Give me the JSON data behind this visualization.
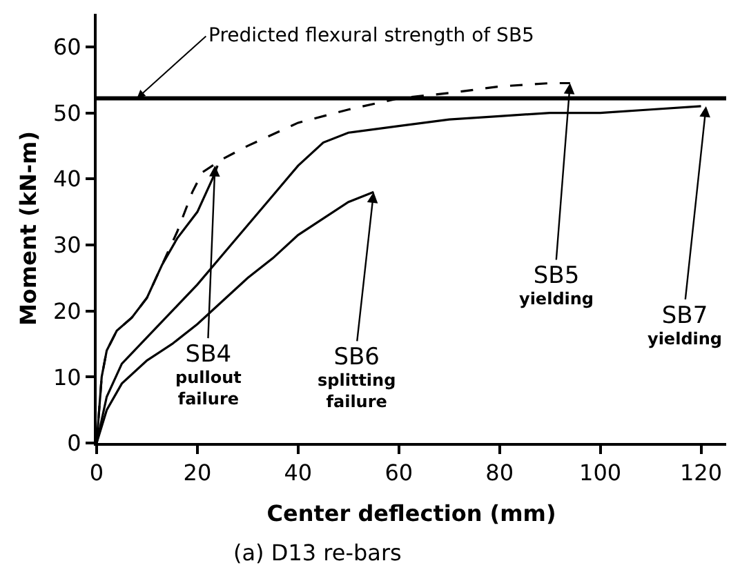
{
  "chart_data": {
    "type": "line",
    "title": "(a) D13 re-bars",
    "xlabel": "Center deflection (mm)",
    "ylabel": "Moment (kN-m)",
    "xlim": [
      0,
      125
    ],
    "ylim": [
      0,
      65
    ],
    "xticks": [
      0,
      20,
      40,
      60,
      80,
      100,
      120
    ],
    "yticks": [
      0,
      10,
      20,
      30,
      40,
      50,
      60
    ],
    "marker": "none",
    "series": [
      {
        "color": "#000000",
        "line_style": "solid",
        "x": [
          0,
          1,
          2,
          4,
          7,
          10,
          13,
          16,
          20,
          23,
          24
        ],
        "values": [
          0,
          10,
          14,
          17,
          19,
          22,
          27,
          31,
          35,
          40,
          42
        ]
      },
      {
        "color": "#000000",
        "line_style": "dashed",
        "x": [
          0,
          0.5,
          1,
          2,
          4,
          7,
          10,
          13,
          16,
          19,
          21,
          25,
          30,
          40,
          50,
          60,
          70,
          80,
          90,
          94
        ],
        "values": [
          0,
          5,
          10,
          14,
          17,
          19,
          22,
          27,
          32,
          38,
          41,
          43,
          45,
          48.5,
          50.5,
          52.2,
          53,
          54,
          54.5,
          54.5
        ]
      },
      {
        "color": "#000000",
        "line_style": "solid",
        "x": [
          0,
          2,
          5,
          10,
          15,
          20,
          25,
          30,
          35,
          40,
          45,
          50,
          55
        ],
        "values": [
          0,
          5,
          9,
          12.5,
          15,
          18,
          21.5,
          25,
          28,
          31.5,
          34,
          36.5,
          38
        ]
      },
      {
        "color": "#000000",
        "line_style": "solid",
        "x": [
          0,
          2,
          5,
          10,
          15,
          20,
          25,
          30,
          35,
          40,
          45,
          50,
          60,
          70,
          80,
          90,
          100,
          110,
          120
        ],
        "values": [
          0,
          7,
          12,
          16,
          20,
          24,
          28.5,
          33,
          37.5,
          42,
          45.5,
          47,
          48,
          49,
          49.5,
          50,
          50,
          50.5,
          51
        ]
      }
    ],
    "ref_lines": [
      {
        "axis": "y",
        "value": 52.2,
        "label": "Predicted flexural strength of SB5",
        "color": "#000000"
      }
    ],
    "annotations": [
      {
        "text": "SB4\npullout\nfailure",
        "x": 23.5,
        "y": 42
      },
      {
        "text": "SB6\nsplitting\nfailure",
        "x": 55,
        "y": 38
      },
      {
        "text": "SB5\nyielding",
        "x": 94,
        "y": 54.5
      },
      {
        "text": "SB7\nyielding",
        "x": 121,
        "y": 51
      }
    ]
  }
}
